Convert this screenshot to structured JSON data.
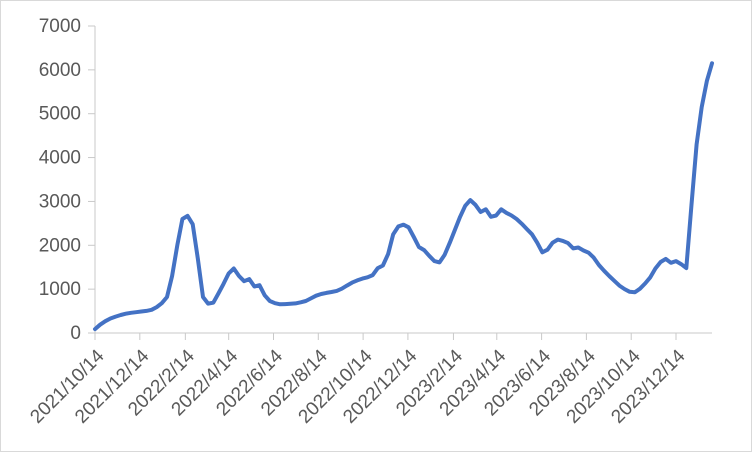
{
  "chart_data": {
    "type": "line",
    "title": "",
    "xlabel": "",
    "ylabel": "",
    "legend": "none",
    "grid": "off",
    "line_color": "#4472C4",
    "axis_color": "#c9c9c9",
    "label_color": "#595959",
    "border_color": "#d9d9d9",
    "ylim": [
      0,
      7000
    ],
    "yticks": [
      0,
      1000,
      2000,
      3000,
      4000,
      5000,
      6000,
      7000
    ],
    "xtick_labels": [
      "2021/10/14",
      "2021/12/14",
      "2022/2/14",
      "2022/4/14",
      "2022/6/14",
      "2022/8/14",
      "2022/10/14",
      "2022/12/14",
      "2023/2/14",
      "2023/4/14",
      "2023/6/14",
      "2023/8/14",
      "2023/10/14",
      "2023/12/14"
    ],
    "x_axis_range": [
      "2021/10/14",
      "2024/2/1"
    ],
    "categories": [
      "2021/10/14",
      "2021/10/21",
      "2021/10/28",
      "2021/11/4",
      "2021/11/11",
      "2021/11/18",
      "2021/11/25",
      "2021/12/2",
      "2021/12/9",
      "2021/12/16",
      "2021/12/23",
      "2021/12/30",
      "2022/1/6",
      "2022/1/13",
      "2022/1/20",
      "2022/1/27",
      "2022/2/3",
      "2022/2/10",
      "2022/2/17",
      "2022/2/24",
      "2022/3/3",
      "2022/3/10",
      "2022/3/17",
      "2022/3/24",
      "2022/3/31",
      "2022/4/7",
      "2022/4/14",
      "2022/4/21",
      "2022/4/28",
      "2022/5/5",
      "2022/5/12",
      "2022/5/19",
      "2022/5/26",
      "2022/6/2",
      "2022/6/9",
      "2022/6/16",
      "2022/6/23",
      "2022/6/30",
      "2022/7/7",
      "2022/7/14",
      "2022/7/21",
      "2022/7/28",
      "2022/8/4",
      "2022/8/11",
      "2022/8/18",
      "2022/8/25",
      "2022/9/1",
      "2022/9/8",
      "2022/9/15",
      "2022/9/22",
      "2022/9/29",
      "2022/10/6",
      "2022/10/13",
      "2022/10/20",
      "2022/10/27",
      "2022/11/3",
      "2022/11/10",
      "2022/11/17",
      "2022/11/24",
      "2022/12/1",
      "2022/12/8",
      "2022/12/15",
      "2022/12/22",
      "2022/12/29",
      "2023/1/5",
      "2023/1/12",
      "2023/1/19",
      "2023/1/26",
      "2023/2/2",
      "2023/2/9",
      "2023/2/16",
      "2023/2/23",
      "2023/3/2",
      "2023/3/9",
      "2023/3/16",
      "2023/3/23",
      "2023/3/30",
      "2023/4/6",
      "2023/4/13",
      "2023/4/20",
      "2023/4/27",
      "2023/5/4",
      "2023/5/11",
      "2023/5/18",
      "2023/5/25",
      "2023/6/1",
      "2023/6/8",
      "2023/6/15",
      "2023/6/22",
      "2023/6/29",
      "2023/7/6",
      "2023/7/13",
      "2023/7/20",
      "2023/7/27",
      "2023/8/3",
      "2023/8/10",
      "2023/8/17",
      "2023/8/24",
      "2023/8/31",
      "2023/9/7",
      "2023/9/14",
      "2023/9/21",
      "2023/9/28",
      "2023/10/5",
      "2023/10/12",
      "2023/10/19",
      "2023/10/26",
      "2023/11/2",
      "2023/11/9",
      "2023/11/16",
      "2023/11/23",
      "2023/11/30",
      "2023/12/7",
      "2023/12/14",
      "2023/12/21",
      "2023/12/28",
      "2024/1/4",
      "2024/1/11",
      "2024/1/18",
      "2024/1/25",
      "2024/2/1"
    ],
    "values": [
      90,
      190,
      270,
      330,
      375,
      410,
      440,
      460,
      475,
      490,
      505,
      530,
      590,
      680,
      820,
      1300,
      2000,
      2600,
      2670,
      2480,
      1700,
      820,
      670,
      690,
      900,
      1120,
      1360,
      1470,
      1300,
      1180,
      1230,
      1060,
      1090,
      860,
      730,
      680,
      655,
      660,
      665,
      675,
      700,
      730,
      790,
      850,
      890,
      915,
      935,
      960,
      1010,
      1080,
      1150,
      1200,
      1240,
      1270,
      1320,
      1480,
      1540,
      1800,
      2250,
      2430,
      2470,
      2410,
      2190,
      1960,
      1890,
      1760,
      1640,
      1610,
      1780,
      2060,
      2350,
      2650,
      2900,
      3030,
      2920,
      2760,
      2820,
      2650,
      2680,
      2820,
      2740,
      2680,
      2600,
      2490,
      2370,
      2250,
      2060,
      1840,
      1900,
      2060,
      2130,
      2100,
      2050,
      1930,
      1950,
      1880,
      1830,
      1720,
      1550,
      1420,
      1300,
      1190,
      1080,
      1000,
      940,
      930,
      1010,
      1130,
      1270,
      1470,
      1620,
      1690,
      1600,
      1640,
      1570,
      1480,
      2900,
      4300,
      5150,
      5750,
      6150
    ]
  }
}
